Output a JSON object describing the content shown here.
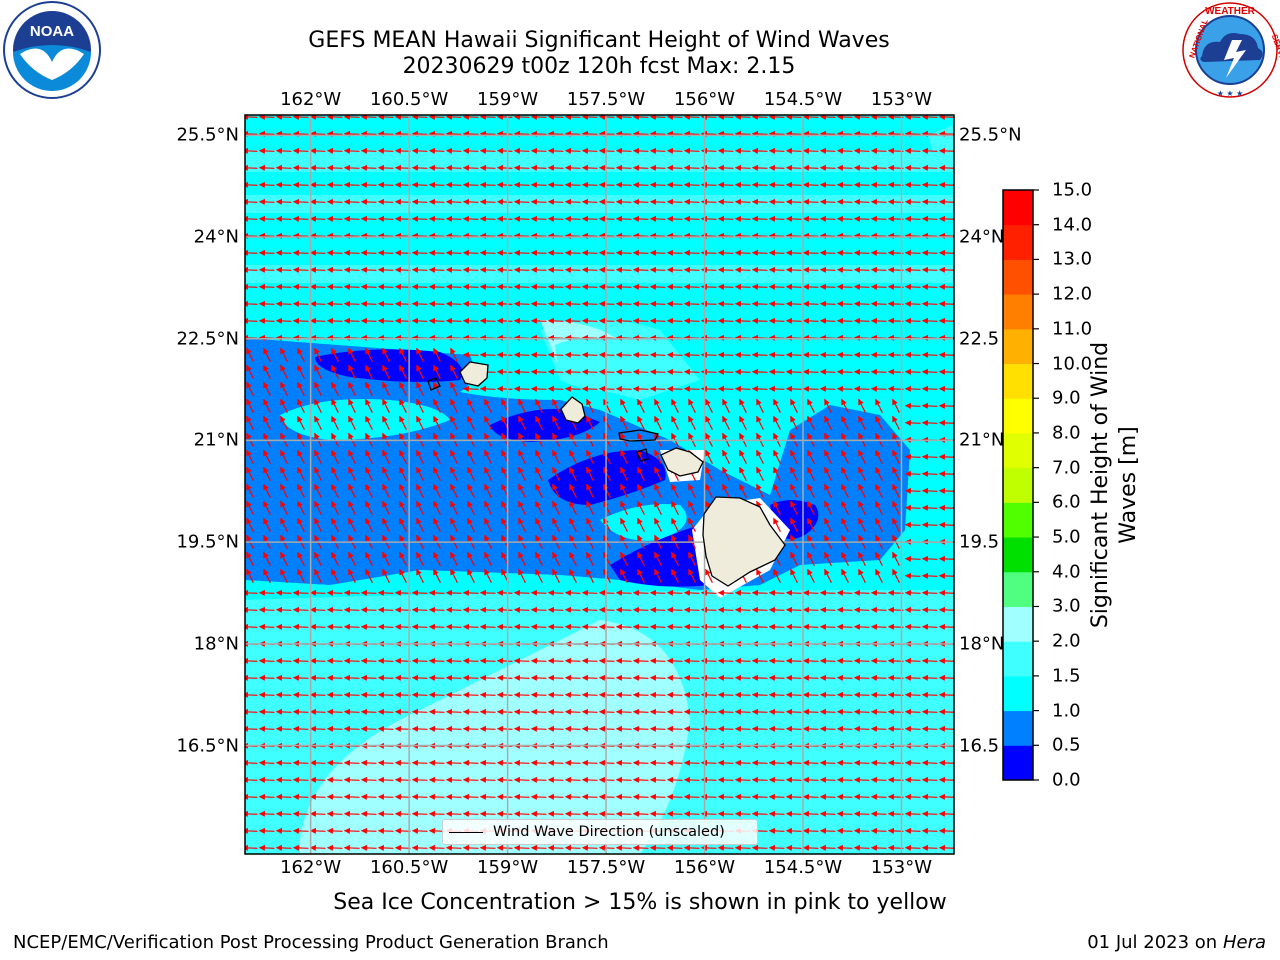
{
  "title": {
    "line1": "GEFS MEAN Hawaii Significant Height of Wind Waves",
    "line2": "20230629 t00z 120h fcst   Max: 2.15"
  },
  "logos": {
    "left": "noaa-logo",
    "right": "national-weather-service-logo",
    "nws_text": "NATIONAL WEATHER SERVICE",
    "noaa_text": "NOAA"
  },
  "map": {
    "lon_range": [
      -163.0,
      -152.2
    ],
    "lat_range": [
      14.9,
      25.8
    ],
    "lon_ticks": [
      "162°W",
      "160.5°W",
      "159°W",
      "157.5°W",
      "156°W",
      "154.5°W",
      "153°W"
    ],
    "lon_tick_values": [
      -162.0,
      -160.5,
      -159.0,
      -157.5,
      -156.0,
      -154.5,
      -153.0
    ],
    "lat_ticks": [
      "25.5°N",
      "24°N",
      "22.5°N",
      "21°N",
      "19.5°N",
      "18°N",
      "16.5°N"
    ],
    "lat_tick_values": [
      25.5,
      24.0,
      22.5,
      21.0,
      19.5,
      18.0,
      16.5
    ],
    "right_lat_ticks": [
      "25.5°N",
      "24°N",
      "22.5",
      "21°N",
      "19.5",
      "18°N",
      "16.5"
    ],
    "grid": true,
    "arrow_color": "#ff0000",
    "land_color": "#f0ecdc",
    "legend_label": "Wind Wave Direction (unscaled)",
    "legend_placement": "bottom-center"
  },
  "colorbar": {
    "label": "Significant Height of Wind Waves [m]",
    "label_lines": [
      "Significant Height of Wind",
      "Waves [m]"
    ],
    "ticks": [
      "0.0",
      "0.5",
      "1.0",
      "1.5",
      "2.0",
      "3.0",
      "4.0",
      "5.0",
      "6.0",
      "7.0",
      "8.0",
      "9.0",
      "10.0",
      "11.0",
      "12.0",
      "13.0",
      "14.0",
      "15.0"
    ],
    "colors": [
      "#0000ff",
      "#0080ff",
      "#00ffff",
      "#40ffff",
      "#a0ffff",
      "#50ff80",
      "#00e000",
      "#50ff00",
      "#c0ff00",
      "#e0ff00",
      "#ffff00",
      "#ffe000",
      "#ffb000",
      "#ff8000",
      "#ff5000",
      "#ff2000",
      "#ff0000"
    ]
  },
  "note": "Sea Ice Concentration > 15% is shown in pink to yellow",
  "footer": {
    "left": "NCEP/EMC/Verification Post Processing Product Generation Branch",
    "right_date": "01 Jul 2023 on ",
    "right_host": "Hera"
  }
}
